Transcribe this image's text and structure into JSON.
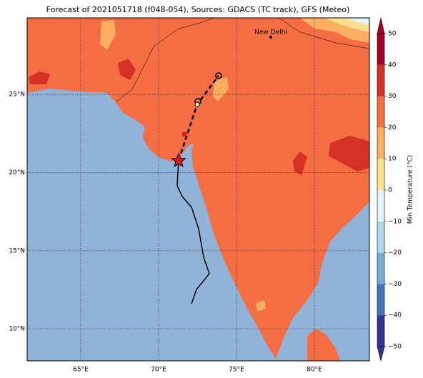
{
  "title": "Forecast of 2021051718 (f048-054), Sources: GDACS (TC track), GFS (Meteo)",
  "cities": [
    {
      "label": "New Delhi"
    }
  ],
  "map": {
    "lon_ticks": [
      {
        "value": 65,
        "label": "65°E"
      },
      {
        "value": 70,
        "label": "70°E"
      },
      {
        "value": 75,
        "label": "75°E"
      },
      {
        "value": 80,
        "label": "80°E"
      }
    ],
    "lat_ticks": [
      {
        "value": 10,
        "label": "10°N"
      },
      {
        "value": 15,
        "label": "15°N"
      },
      {
        "value": 20,
        "label": "20°N"
      },
      {
        "value": 25,
        "label": "25°N"
      }
    ],
    "lon_range": [
      61.56,
      83.53
    ],
    "lat_range": [
      7.95,
      29.9
    ]
  },
  "colorbar": {
    "label": "Min Temperature (°C)",
    "ticks": [
      {
        "value": -50,
        "label": "−50"
      },
      {
        "value": -40,
        "label": "−40"
      },
      {
        "value": -30,
        "label": "−30"
      },
      {
        "value": -20,
        "label": "−20"
      },
      {
        "value": -10,
        "label": "−10"
      },
      0,
      10,
      20,
      30,
      40,
      50
    ],
    "colors": [
      "#313695",
      "#4575b4",
      "#74add1",
      "#abd9e9",
      "#e0f3f8",
      "#fee090",
      "#fdae61",
      "#f46d43",
      "#d73027",
      "#a50026"
    ]
  }
}
